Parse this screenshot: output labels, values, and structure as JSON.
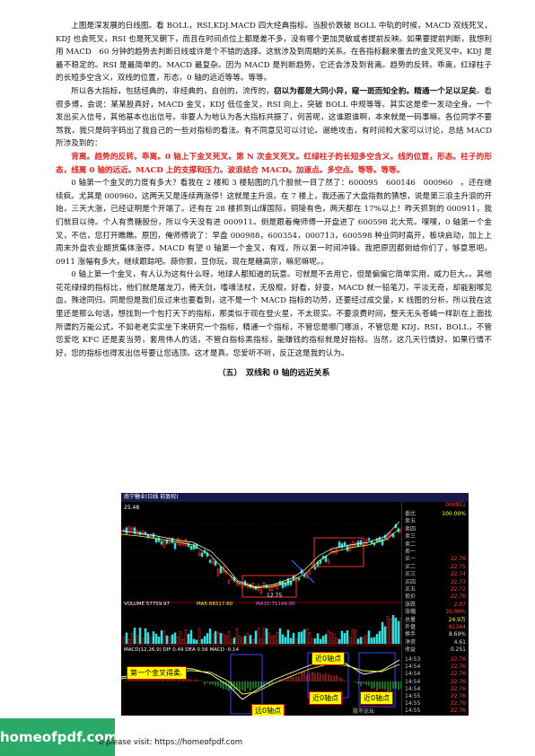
{
  "paragraphs": {
    "p1": "上图是深发展的日线图。看 BOLL，RSI,KDJ.MACD 四大经典指标。当股价跌破 BOLL 中轨的时候，MACD 双线死叉，KDJ 也会死叉，RSI 也是死叉朝下，而且在时间点位上都是差不多，没有哪个更加灵敏或者提前反映。如果要提前判断，我想利用 MACD　60 分钟的趋势去判断日线或许是个不错的选择。这就涉及到周期的关系。在各指标翻来覆去的金叉死叉中，KDJ 是最不稳定的。RSI 是最简单的。MACD 最复杂。因为 MACD 是判断趋势，它还会涉及到背离。趋势的反转。乖离，红绿柱子的长短多空含义，双线的位置，形态，0 轴的远近等等。等等。",
    "p2a": "所以各大指标，包括经典的，非经典的，自创的，流传的，",
    "p2b": "窃以为都是大同小异，窥一斑而知全豹。精通一个足以足矣",
    "p2c": "。看很多博，会说：某某股真好，MACD 金叉，KDJ 低位金叉，RSI 向上，突破 BOLL 中规等等。其实这是牵一发动全身。一个发出买入信号，其他基本也出信号。非要人为地认为各大指标共振了，何苦呢，这谁跟谁啊，本来就是一码事嘛。各位同学不要骂我，我只是码字码出了我自己的一些对指标的看法。有不同意见可以讨论。谢绝攻击，有时间和大家可以讨论，总结 MACD 所涉及到的：",
    "p3": "背离。趋势的反转。乖离。0 轴上下金叉死叉。第 N 次金叉死叉。红绿柱子的长短多空含义。线的位置，形态。柱子的形态，线离 0 轴的远近。MACD 上的支撑和压力。波浪结合 MACD。加速点。多空点。等等。等等。",
    "p4": "0 轴第一个金叉的力度有多大？看我在 2 楼和 3 楼贴图的几个股就一目了然了：600095　600146　000960　。还在继续疯。尤其是 000960，这两天又是连续两涨停！这就是主升浪。在 7 楼上，我还画了大盘指数的猜想，说是第三浪主升浪的开始，三天大涨，已经证明是个开端了。还有在 28 楼抓到山煤国际，铜陵有色，两天都在 17%以上！昨天抓到的 000911，我们就目以待。个人有贵糖股份，所以今天没有进 000911。倒是跟着俺师傅一开盘进了 600598 北大荒。嘿嘿，0 轴第一个金叉，不信，您打开瞧瞧。原因，俺师傅说了：早盘 000988，600354，000713，600598 种业同时高开，板块启动，加上上周末外盘农业期货集体涨停，MACD 有望 0 轴第一个金叉，有戏，所以第一时间冲锋。我把原因都倒给你们了，够意思吧。0911 涨幅有多大，继续跟踪吧。蒜你狠，豆你玩，现在是糖高宗，嘛尼嘛呢。。",
    "p5": "0 轴上第一个金叉，有人认为这有什么呀，地球人都知道的玩意。可就是不去用它，但是偏偏它简单实用，威力巨大。。其他花花绿绿的指标比，他们就是屠龙刀，倚天剑，嗜魂法杖，无极棍，好看，好耍，MACD 就一铅笔刀，平淡无奇，却能割喉见血，殊途同归。同是但是我们反过来也要看到，这不是一个 MACD 指标的功劳，还要经过成交量，K 线图的分析。所以我在这里还是那么句话，想找到一个包打天下的指标，那类似于现在登火星，不太现实。不要浪费时间，整天无头苍蝇一样趴在上面找所谓的万能公式，不如老老实实坐下来研究一个指标，精通一个指标，不管您是哪门哪派，不管您是 KDJ，RSI，BOLL，不管您爱吃 KFC 还是麦当劳，套用伟人的话，不管白指标黑指标，能赚钱的指标就是好指标。当然，这几天行情好。如果行情不好，您的指标也得发出信号要让您逃顶。这才是真。您爱听不听，反正这是我的认为。"
  },
  "section_title": "（五）　双线和 0 轴的远近关系",
  "chart": {
    "header": "南宁糖业(日线 前复权)",
    "code": "000911",
    "top_price": "25.48",
    "low_price": "12.75",
    "volume_label": "VOLUME 57759.97",
    "ma5_label": "MA5:66517.60",
    "ma10_label": "MA10:71149.00",
    "macd_label": "MACD(12,26,9)  DIF 0.49  DEA 0.56  MACD -0.14",
    "annotations": {
      "first_golden": "第一个金叉得柔.",
      "near_zero_1": "远0轴点",
      "near_zero_2": "近0轴点",
      "near_zero_3": "近0轴点",
      "near_zero_4": "近0轴点"
    },
    "side_rows": [
      {
        "k": "委比",
        "v": "100.00%"
      },
      {
        "k": "卖五",
        "v": ""
      },
      {
        "k": "卖四",
        "v": ""
      },
      {
        "k": "卖三",
        "v": ""
      },
      {
        "k": "卖二",
        "v": ""
      },
      {
        "k": "卖一",
        "v": ""
      },
      {
        "k": "买一",
        "v": "22.76"
      },
      {
        "k": "买二",
        "v": "22.75"
      },
      {
        "k": "买三",
        "v": "22.74"
      },
      {
        "k": "买四",
        "v": "22.73"
      },
      {
        "k": "买五",
        "v": "22.72"
      },
      {
        "k": "现价",
        "v": "22.76"
      },
      {
        "k": "涨跌",
        "v": "2.07"
      },
      {
        "k": "涨幅",
        "v": "10.00%"
      },
      {
        "k": "总量",
        "v": "24.9万"
      },
      {
        "k": "外盘",
        "v": "81344"
      },
      {
        "k": "换手",
        "v": "8.69%"
      },
      {
        "k": "净资",
        "v": "4.61"
      },
      {
        "k": "收益",
        "v": "0.251"
      }
    ],
    "ticks": [
      {
        "t": "14:53",
        "p": "22.76"
      },
      {
        "t": "14:54",
        "p": "22.76"
      },
      {
        "t": "14:54",
        "p": "22.76"
      },
      {
        "t": "14:54",
        "p": "22.76"
      },
      {
        "t": "14:54",
        "p": "22.76"
      },
      {
        "t": "14:55",
        "p": "22.76"
      },
      {
        "t": "14:55",
        "p": "22.76"
      },
      {
        "t": "14:55",
        "p": "22.76"
      }
    ],
    "watermark": "股市论坛"
  },
  "footer": {
    "logo": "homeofpdf.com",
    "text": "e please visit: https://homeofpdf.com"
  }
}
